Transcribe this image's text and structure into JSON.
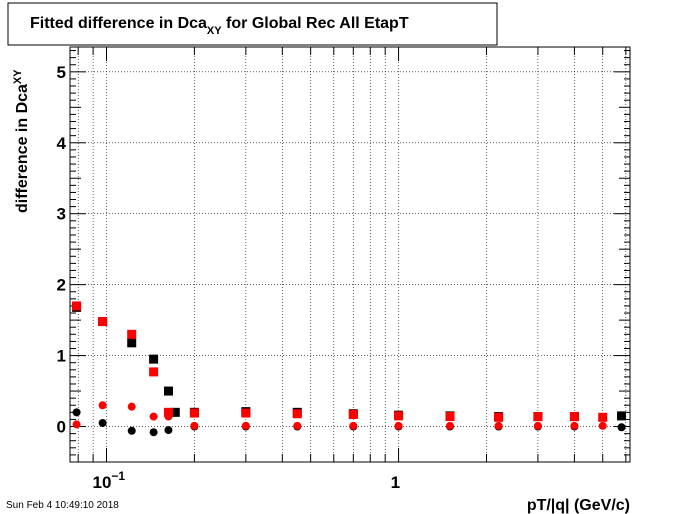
{
  "chart_data": {
    "type": "scatter",
    "title": "Fitted difference in Dca",
    "title_sub": "XY",
    "title_rest": " for Global Rec All EtapT",
    "ylabel": "difference in Dca",
    "ylabel_sub": "XY",
    "xlabel": "pT/|q| (GeV/c)",
    "x_scale": "log",
    "xlim": [
      0.075,
      6.2
    ],
    "ylim": [
      -0.5,
      5.35
    ],
    "grid": true,
    "x_tick_labels": [
      {
        "value": 0.1,
        "base": "10",
        "exp": "−1"
      },
      {
        "value": 1,
        "base": "1",
        "exp": ""
      }
    ],
    "y_ticks": [
      0,
      1,
      2,
      3,
      4,
      5
    ],
    "series": [
      {
        "marker": "square",
        "color": "#000000",
        "points": [
          [
            0.079,
            1.68
          ],
          [
            0.097,
            1.48
          ],
          [
            0.122,
            1.18
          ],
          [
            0.145,
            0.95
          ],
          [
            0.163,
            0.5
          ],
          [
            0.172,
            0.2
          ],
          [
            0.2,
            0.2
          ],
          [
            0.3,
            0.21
          ],
          [
            0.45,
            0.2
          ],
          [
            0.7,
            0.18
          ],
          [
            1.0,
            0.16
          ],
          [
            1.5,
            0.15
          ],
          [
            2.2,
            0.14
          ],
          [
            3.0,
            0.14
          ],
          [
            4.0,
            0.14
          ],
          [
            5.8,
            0.15
          ]
        ]
      },
      {
        "marker": "square",
        "color": "#ff0000",
        "points": [
          [
            0.079,
            1.7
          ],
          [
            0.097,
            1.48
          ],
          [
            0.122,
            1.3
          ],
          [
            0.145,
            0.77
          ],
          [
            0.163,
            0.2
          ],
          [
            0.2,
            0.19
          ],
          [
            0.3,
            0.19
          ],
          [
            0.45,
            0.18
          ],
          [
            0.7,
            0.17
          ],
          [
            1.0,
            0.15
          ],
          [
            1.5,
            0.14
          ],
          [
            2.2,
            0.13
          ],
          [
            3.0,
            0.14
          ],
          [
            4.0,
            0.14
          ],
          [
            5.0,
            0.13
          ]
        ]
      },
      {
        "marker": "circle",
        "color": "#000000",
        "points": [
          [
            0.079,
            0.2
          ],
          [
            0.097,
            0.05
          ],
          [
            0.122,
            -0.06
          ],
          [
            0.145,
            -0.08
          ],
          [
            0.163,
            -0.05
          ],
          [
            0.2,
            0.0
          ],
          [
            0.3,
            0.0
          ],
          [
            0.45,
            0.0
          ],
          [
            0.7,
            0.0
          ],
          [
            1.0,
            0.0
          ],
          [
            1.5,
            0.0
          ],
          [
            2.2,
            0.0
          ],
          [
            3.0,
            0.0
          ],
          [
            4.0,
            0.0
          ],
          [
            5.8,
            -0.01
          ]
        ]
      },
      {
        "marker": "circle",
        "color": "#ff0000",
        "points": [
          [
            0.079,
            0.03
          ],
          [
            0.097,
            0.3
          ],
          [
            0.122,
            0.28
          ],
          [
            0.145,
            0.14
          ],
          [
            0.163,
            0.14
          ],
          [
            0.2,
            0.01
          ],
          [
            0.3,
            0.01
          ],
          [
            0.45,
            0.01
          ],
          [
            0.7,
            0.01
          ],
          [
            1.0,
            0.01
          ],
          [
            1.5,
            0.01
          ],
          [
            2.2,
            0.01
          ],
          [
            3.0,
            0.01
          ],
          [
            4.0,
            0.01
          ],
          [
            5.0,
            0.01
          ]
        ]
      }
    ]
  },
  "footer": {
    "timestamp": "Sun Feb  4 10:49:10 2018"
  }
}
